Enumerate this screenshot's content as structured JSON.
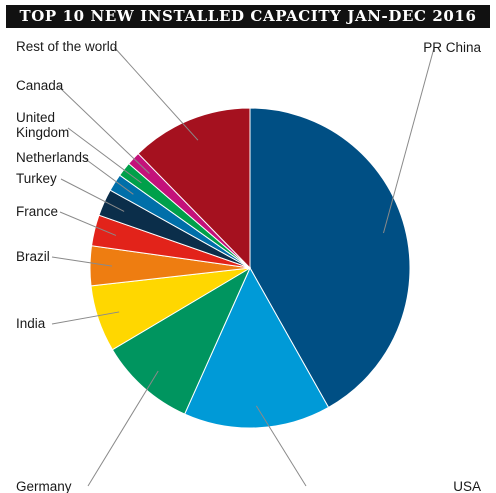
{
  "chart_data": {
    "type": "pie",
    "title": "TOP 10 NEW INSTALLED CAPACITY JAN-DEC 2016",
    "categories": [
      "PR China",
      "USA",
      "Germany",
      "India",
      "Brazil",
      "France",
      "Turkey",
      "Netherlands",
      "United Kingdom",
      "Canada",
      "Rest of the world"
    ],
    "values": [
      42.8,
      15.2,
      10.0,
      6.9,
      4.1,
      3.2,
      2.8,
      1.8,
      1.5,
      1.4,
      12.6
    ],
    "colors": [
      "#004f84",
      "#009ad7",
      "#00955f",
      "#ffd700",
      "#ee7d11",
      "#e2231a",
      "#0b2e4a",
      "#006fa9",
      "#00a04a",
      "#c4117a",
      "#a5111f"
    ],
    "start": "12 o'clock",
    "direction": "clockwise",
    "legend": "none"
  }
}
